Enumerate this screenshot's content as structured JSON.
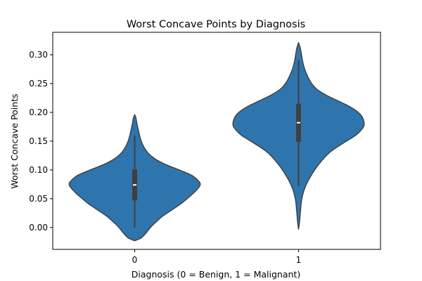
{
  "chart_data": {
    "type": "violin",
    "title": "Worst Concave Points by Diagnosis",
    "xlabel": "Diagnosis (0 = Benign, 1 = Malignant)",
    "ylabel": "Worst Concave Points",
    "categories": [
      "0",
      "1"
    ],
    "ylim": [
      -0.038,
      0.339
    ],
    "yticks": [
      0.0,
      0.05,
      0.1,
      0.15,
      0.2,
      0.25,
      0.3
    ],
    "ytick_labels": [
      "0.00",
      "0.05",
      "0.10",
      "0.15",
      "0.20",
      "0.25",
      "0.30"
    ],
    "grid": false,
    "colors": {
      "violin_fill": "#2f75ad",
      "violin_edge": "#3f3f3f",
      "box": "#3f3f3f",
      "median": "#ffffff"
    },
    "violins": [
      {
        "category": "0",
        "min": 0.0,
        "q1": 0.047,
        "median": 0.074,
        "q3": 0.101,
        "max": 0.16,
        "density": [
          [
            -0.023,
            0.0
          ],
          [
            -0.018,
            0.1
          ],
          [
            -0.01,
            0.17
          ],
          [
            0.0,
            0.24
          ],
          [
            0.01,
            0.33
          ],
          [
            0.02,
            0.43
          ],
          [
            0.03,
            0.56
          ],
          [
            0.04,
            0.69
          ],
          [
            0.05,
            0.8
          ],
          [
            0.06,
            0.9
          ],
          [
            0.07,
            0.98
          ],
          [
            0.075,
            1.0
          ],
          [
            0.08,
            0.98
          ],
          [
            0.09,
            0.88
          ],
          [
            0.1,
            0.68
          ],
          [
            0.11,
            0.46
          ],
          [
            0.12,
            0.3
          ],
          [
            0.13,
            0.2
          ],
          [
            0.14,
            0.14
          ],
          [
            0.15,
            0.1
          ],
          [
            0.16,
            0.075
          ],
          [
            0.17,
            0.055
          ],
          [
            0.18,
            0.035
          ],
          [
            0.19,
            0.02
          ],
          [
            0.196,
            0.0
          ]
        ]
      },
      {
        "category": "1",
        "min": 0.072,
        "q1": 0.149,
        "median": 0.182,
        "q3": 0.215,
        "max": 0.291,
        "density": [
          [
            -0.003,
            0.0
          ],
          [
            0.01,
            0.015
          ],
          [
            0.03,
            0.03
          ],
          [
            0.05,
            0.05
          ],
          [
            0.07,
            0.1
          ],
          [
            0.09,
            0.19
          ],
          [
            0.11,
            0.31
          ],
          [
            0.13,
            0.47
          ],
          [
            0.145,
            0.66
          ],
          [
            0.16,
            0.87
          ],
          [
            0.17,
            0.96
          ],
          [
            0.178,
            1.0
          ],
          [
            0.19,
            0.98
          ],
          [
            0.2,
            0.91
          ],
          [
            0.21,
            0.78
          ],
          [
            0.22,
            0.6
          ],
          [
            0.23,
            0.42
          ],
          [
            0.24,
            0.28
          ],
          [
            0.25,
            0.2
          ],
          [
            0.26,
            0.15
          ],
          [
            0.27,
            0.11
          ],
          [
            0.28,
            0.08
          ],
          [
            0.29,
            0.06
          ],
          [
            0.3,
            0.045
          ],
          [
            0.31,
            0.03
          ],
          [
            0.316,
            0.015
          ],
          [
            0.321,
            0.0
          ]
        ]
      }
    ]
  }
}
